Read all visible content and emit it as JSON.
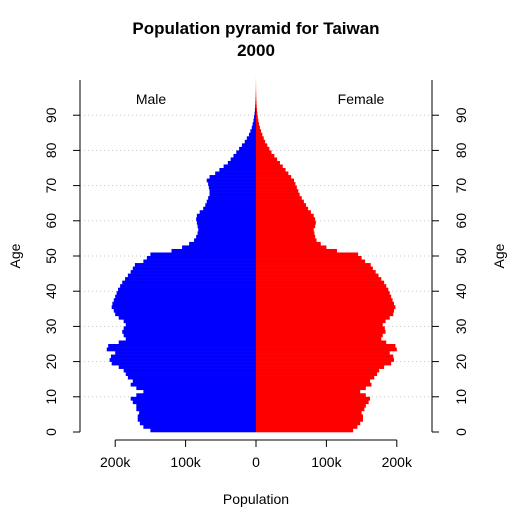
{
  "chart_data": {
    "type": "bar",
    "orientation": "horizontal-back-to-back",
    "title": "Population pyramid for Taiwan",
    "subtitle": "2000",
    "xlabel": "Population",
    "ylabel_left": "Age",
    "ylabel_right": "Age",
    "xlim": [
      -250000,
      250000
    ],
    "ylim": [
      0,
      100
    ],
    "x_ticks": [
      {
        "value": -200000,
        "label": "200k"
      },
      {
        "value": -100000,
        "label": "100k"
      },
      {
        "value": 0,
        "label": "0"
      },
      {
        "value": 100000,
        "label": "100k"
      },
      {
        "value": 200000,
        "label": "200k"
      }
    ],
    "y_ticks": [
      0,
      10,
      20,
      30,
      40,
      50,
      60,
      70,
      80,
      90
    ],
    "grid": "horizontal dotted at 10-year intervals",
    "series": [
      {
        "name": "Male",
        "color": "#0000ff",
        "side": "left",
        "ages": [
          0,
          1,
          2,
          3,
          4,
          5,
          6,
          7,
          8,
          9,
          10,
          11,
          12,
          13,
          14,
          15,
          16,
          17,
          18,
          19,
          20,
          21,
          22,
          23,
          24,
          25,
          26,
          27,
          28,
          29,
          30,
          31,
          32,
          33,
          34,
          35,
          36,
          37,
          38,
          39,
          40,
          41,
          42,
          43,
          44,
          45,
          46,
          47,
          48,
          49,
          50,
          51,
          52,
          53,
          54,
          55,
          56,
          57,
          58,
          59,
          60,
          61,
          62,
          63,
          64,
          65,
          66,
          67,
          68,
          69,
          70,
          71,
          72,
          73,
          74,
          75,
          76,
          77,
          78,
          79,
          80,
          81,
          82,
          83,
          84,
          85,
          86,
          87,
          88,
          89,
          90,
          91,
          92,
          93,
          94,
          95,
          96,
          97,
          98,
          99,
          100
        ],
        "values": [
          150000,
          160000,
          165000,
          168000,
          168000,
          166000,
          170000,
          170000,
          175000,
          178000,
          170000,
          160000,
          170000,
          178000,
          175000,
          182000,
          185000,
          188000,
          195000,
          205000,
          208000,
          206000,
          200000,
          212000,
          210000,
          195000,
          185000,
          188000,
          190000,
          188000,
          185000,
          188000,
          195000,
          200000,
          202000,
          205000,
          204000,
          202000,
          200000,
          198000,
          196000,
          193000,
          190000,
          186000,
          182000,
          178000,
          175000,
          172000,
          160000,
          155000,
          150000,
          120000,
          105000,
          95000,
          88000,
          85000,
          83000,
          82000,
          83000,
          84000,
          85000,
          84000,
          80000,
          75000,
          72000,
          70000,
          68000,
          66000,
          66000,
          67000,
          68000,
          70000,
          66000,
          58000,
          52000,
          46000,
          40000,
          36000,
          32000,
          28000,
          24000,
          20000,
          16000,
          13000,
          10000,
          8000,
          6000,
          4800,
          3600,
          2800,
          2000,
          1500,
          1100,
          800,
          600,
          400,
          300,
          200,
          120,
          80,
          40
        ]
      },
      {
        "name": "Female",
        "color": "#ff0000",
        "side": "right",
        "ages": [
          0,
          1,
          2,
          3,
          4,
          5,
          6,
          7,
          8,
          9,
          10,
          11,
          12,
          13,
          14,
          15,
          16,
          17,
          18,
          19,
          20,
          21,
          22,
          23,
          24,
          25,
          26,
          27,
          28,
          29,
          30,
          31,
          32,
          33,
          34,
          35,
          36,
          37,
          38,
          39,
          40,
          41,
          42,
          43,
          44,
          45,
          46,
          47,
          48,
          49,
          50,
          51,
          52,
          53,
          54,
          55,
          56,
          57,
          58,
          59,
          60,
          61,
          62,
          63,
          64,
          65,
          66,
          67,
          68,
          69,
          70,
          71,
          72,
          73,
          74,
          75,
          76,
          77,
          78,
          79,
          80,
          81,
          82,
          83,
          84,
          85,
          86,
          87,
          88,
          89,
          90,
          91,
          92,
          93,
          94,
          95,
          96,
          97,
          98,
          99,
          100
        ],
        "values": [
          138000,
          144000,
          148000,
          152000,
          152000,
          150000,
          154000,
          156000,
          160000,
          162000,
          156000,
          148000,
          156000,
          164000,
          162000,
          168000,
          172000,
          175000,
          182000,
          192000,
          196000,
          195000,
          190000,
          200000,
          198000,
          185000,
          178000,
          180000,
          184000,
          183000,
          180000,
          184000,
          190000,
          195000,
          196000,
          198000,
          196000,
          194000,
          192000,
          190000,
          188000,
          185000,
          182000,
          178000,
          174000,
          170000,
          166000,
          163000,
          155000,
          150000,
          145000,
          115000,
          100000,
          92000,
          86000,
          84000,
          83000,
          82000,
          84000,
          85000,
          84000,
          82000,
          78000,
          74000,
          71000,
          68000,
          65000,
          62000,
          60000,
          58000,
          56000,
          54000,
          50000,
          46000,
          42000,
          38000,
          34000,
          30000,
          26000,
          22000,
          19000,
          16000,
          13000,
          11000,
          9000,
          7200,
          5600,
          4300,
          3300,
          2500,
          1900,
          1400,
          1000,
          700,
          500,
          330,
          220,
          140,
          90,
          50,
          25
        ]
      }
    ],
    "annotations": [
      "Male",
      "Female"
    ]
  }
}
